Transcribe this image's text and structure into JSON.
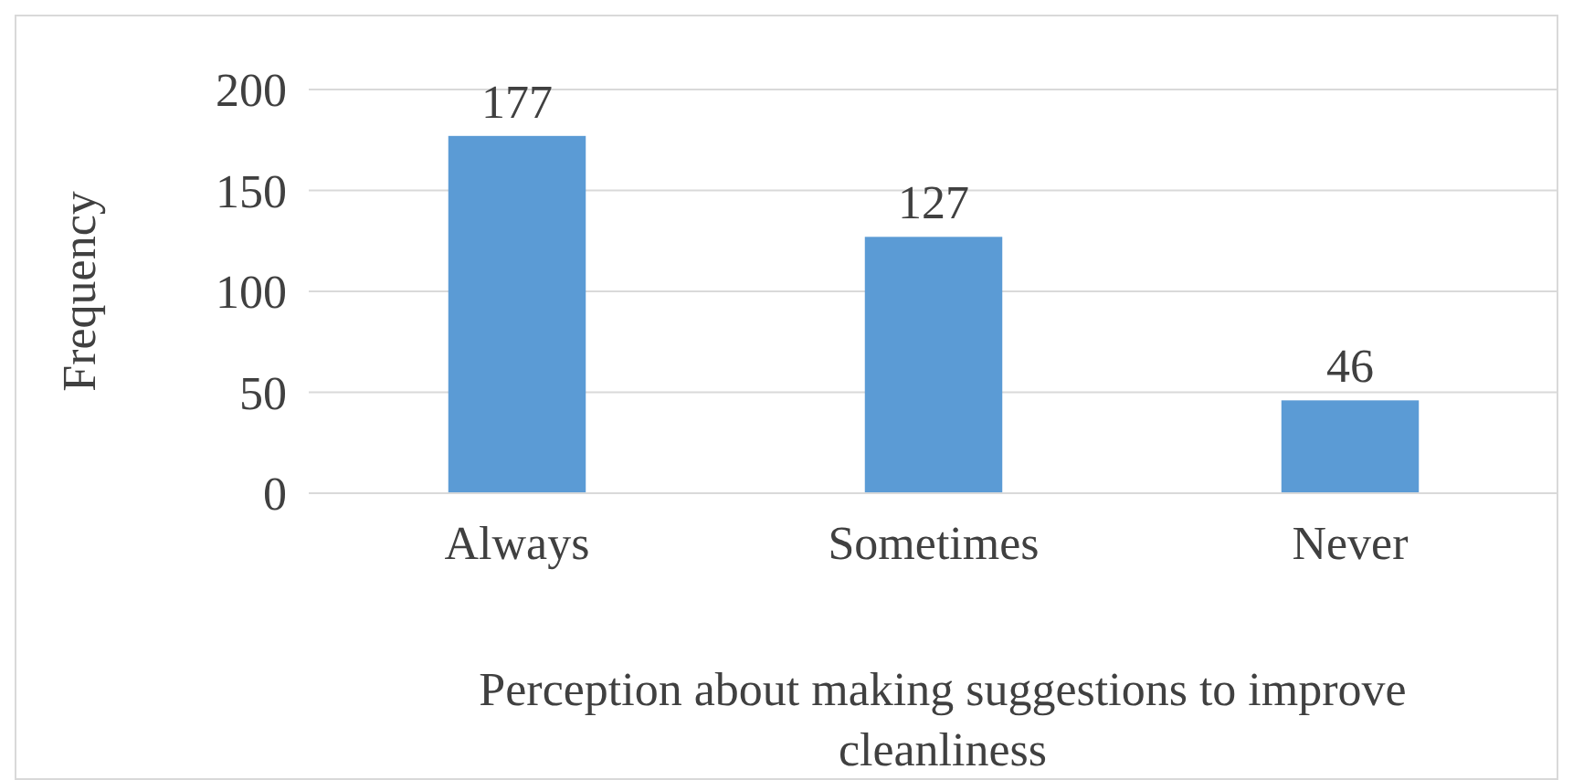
{
  "chart_data": {
    "type": "bar",
    "xlabel": "Perception about making suggestions to improve cleanliness",
    "ylabel": "Frequency",
    "categories": [
      "Always",
      "Sometimes",
      "Never"
    ],
    "values": [
      177,
      127,
      46
    ],
    "color": "#5b9bd5",
    "ylim": [
      0,
      200
    ],
    "yticks": [
      0,
      50,
      100,
      150,
      200
    ],
    "grid": "y",
    "data_labels": true
  }
}
